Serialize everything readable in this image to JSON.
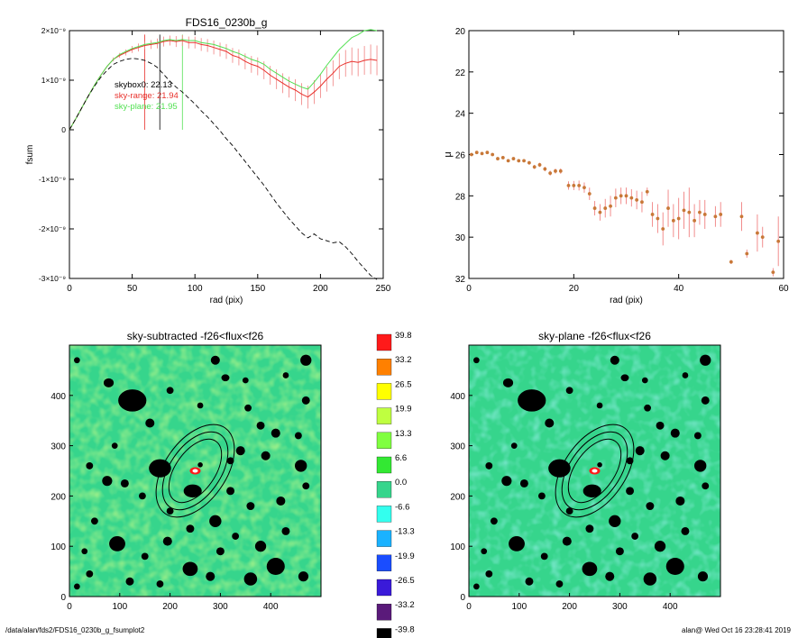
{
  "footer": {
    "path": "/data/alan/fds2/FDS16_0230b_g_fsumplot2",
    "user_date": "alan@  Wed Oct 16 23:28:41 2019"
  },
  "colors": {
    "red": "#e8312c",
    "green": "#52e052",
    "orange": "#c87838",
    "errorbar": "#f08080",
    "background_map": "#36d58c",
    "mask": "#000000"
  },
  "chart_data": [
    {
      "id": "fsum",
      "type": "line",
      "title": "FDS16_0230b_g",
      "xlabel": "rad (pix)",
      "ylabel": "fsum",
      "xlim": [
        0,
        250
      ],
      "ylim": [
        -3e-09,
        2e-09
      ],
      "xticks": [
        "0",
        "50",
        "100",
        "150",
        "200",
        "250"
      ],
      "yticks": [
        "-3×10⁻⁹",
        "-2×10⁻⁹",
        "-1×10⁻⁹",
        "0",
        "1×10⁻⁹",
        "2×10⁻⁹"
      ],
      "annotations": [
        {
          "text": "skybox0: 22.13",
          "color": "#000000"
        },
        {
          "text": "sky-range: 21.94",
          "color": "#e8312c"
        },
        {
          "text": "sky-plane: 21.95",
          "color": "#52e052"
        }
      ],
      "vertical_markers": [
        {
          "x": 60,
          "color": "#e8312c"
        },
        {
          "x": 72,
          "color": "#000000"
        },
        {
          "x": 90,
          "color": "#52e052"
        }
      ],
      "series": [
        {
          "style": "solid",
          "color": "#e8312c",
          "x": [
            0,
            5,
            10,
            15,
            20,
            25,
            30,
            35,
            40,
            45,
            50,
            55,
            60,
            65,
            70,
            75,
            80,
            85,
            90,
            95,
            100,
            105,
            110,
            115,
            120,
            125,
            130,
            135,
            140,
            145,
            150,
            155,
            160,
            165,
            170,
            175,
            180,
            185,
            190,
            195,
            200,
            205,
            210,
            215,
            220,
            225,
            230,
            235,
            240,
            245
          ],
          "y": [
            0,
            2.2e-10,
            4.5e-10,
            6.8e-10,
            9e-10,
            1.1e-09,
            1.28e-09,
            1.42e-09,
            1.5e-09,
            1.56e-09,
            1.62e-09,
            1.66e-09,
            1.7e-09,
            1.72e-09,
            1.74e-09,
            1.78e-09,
            1.8e-09,
            1.78e-09,
            1.8e-09,
            1.76e-09,
            1.76e-09,
            1.72e-09,
            1.7e-09,
            1.66e-09,
            1.62e-09,
            1.58e-09,
            1.5e-09,
            1.46e-09,
            1.38e-09,
            1.32e-09,
            1.28e-09,
            1.2e-09,
            1.1e-09,
            1.02e-09,
            9.4e-10,
            8.6e-10,
            8e-10,
            7.2e-10,
            6.6e-10,
            7.6e-10,
            8.8e-10,
            1.02e-09,
            1.14e-09,
            1.28e-09,
            1.34e-09,
            1.38e-09,
            1.36e-09,
            1.4e-09,
            1.42e-09,
            1.4e-09
          ],
          "err": [
            0,
            0,
            0,
            0,
            0,
            0,
            0,
            4e-11,
            5e-11,
            6e-11,
            7e-11,
            8e-11,
            8e-11,
            9e-11,
            1e-10,
            1e-10,
            1e-10,
            1.1e-10,
            1.1e-10,
            1.2e-10,
            1.2e-10,
            1.3e-10,
            1.3e-10,
            1.4e-10,
            1.4e-10,
            1.5e-10,
            1.5e-10,
            1.6e-10,
            1.6e-10,
            1.7e-10,
            1.8e-10,
            1.8e-10,
            1.9e-10,
            2e-10,
            2e-10,
            2.1e-10,
            2.2e-10,
            2.2e-10,
            2.3e-10,
            2.4e-10,
            2.4e-10,
            2.5e-10,
            2.6e-10,
            2.6e-10,
            2.7e-10,
            2.8e-10,
            2.8e-10,
            2.9e-10,
            3e-10,
            3e-10
          ]
        },
        {
          "style": "solid",
          "color": "#52e052",
          "x": [
            0,
            5,
            10,
            15,
            20,
            25,
            30,
            35,
            40,
            45,
            50,
            55,
            60,
            65,
            70,
            75,
            80,
            85,
            90,
            95,
            100,
            105,
            110,
            115,
            120,
            125,
            130,
            135,
            140,
            145,
            150,
            155,
            160,
            165,
            170,
            175,
            180,
            185,
            190,
            195,
            200,
            205,
            210,
            215,
            220,
            225,
            230,
            235,
            240,
            245
          ],
          "y": [
            0,
            2.2e-10,
            4.5e-10,
            6.8e-10,
            9e-10,
            1.1e-09,
            1.28e-09,
            1.42e-09,
            1.52e-09,
            1.58e-09,
            1.64e-09,
            1.68e-09,
            1.72e-09,
            1.74e-09,
            1.76e-09,
            1.8e-09,
            1.82e-09,
            1.8e-09,
            1.82e-09,
            1.8e-09,
            1.8e-09,
            1.76e-09,
            1.74e-09,
            1.72e-09,
            1.68e-09,
            1.64e-09,
            1.58e-09,
            1.54e-09,
            1.48e-09,
            1.42e-09,
            1.38e-09,
            1.32e-09,
            1.22e-09,
            1.14e-09,
            1.06e-09,
            9.8e-10,
            9.2e-10,
            8.6e-10,
            8.2e-10,
            9.6e-10,
            1.12e-09,
            1.3e-09,
            1.46e-09,
            1.62e-09,
            1.74e-09,
            1.86e-09,
            1.92e-09,
            2e-09,
            2.02e-09,
            2e-09
          ]
        },
        {
          "style": "dashed",
          "color": "#000000",
          "x": [
            0,
            5,
            10,
            15,
            20,
            25,
            30,
            35,
            40,
            45,
            50,
            55,
            60,
            65,
            70,
            75,
            80,
            85,
            90,
            95,
            100,
            105,
            110,
            115,
            120,
            125,
            130,
            135,
            140,
            145,
            150,
            155,
            160,
            165,
            170,
            175,
            180,
            185,
            190,
            195,
            200,
            205,
            210,
            215,
            220,
            225,
            230,
            235,
            240,
            245
          ],
          "y": [
            0,
            2.2e-10,
            4.5e-10,
            6.8e-10,
            8.8e-10,
            1.06e-09,
            1.2e-09,
            1.32e-09,
            1.38e-09,
            1.42e-09,
            1.44e-09,
            1.43e-09,
            1.4e-09,
            1.34e-09,
            1.26e-09,
            1.12e-09,
            9.8e-10,
            8.6e-10,
            7.6e-10,
            6.4e-10,
            5.2e-10,
            3.8e-10,
            2.6e-10,
            1.2e-10,
            -2e-11,
            -1.8e-10,
            -3.2e-10,
            -4.8e-10,
            -6.4e-10,
            -8e-10,
            -9.6e-10,
            -1.12e-09,
            -1.3e-09,
            -1.48e-09,
            -1.64e-09,
            -1.8e-09,
            -1.94e-09,
            -2.08e-09,
            -2.18e-09,
            -2.1e-09,
            -2.2e-09,
            -2.24e-09,
            -2.28e-09,
            -2.26e-09,
            -2.36e-09,
            -2.5e-09,
            -2.66e-09,
            -2.8e-09,
            -2.94e-09,
            -3.02e-09
          ]
        }
      ]
    },
    {
      "id": "mu",
      "type": "scatter",
      "xlabel": "rad (pix)",
      "ylabel": "μ",
      "xlim": [
        0,
        60
      ],
      "ylim": [
        32,
        20
      ],
      "xticks": [
        "0",
        "20",
        "40",
        "60"
      ],
      "yticks": [
        "20",
        "22",
        "24",
        "26",
        "28",
        "30",
        "32"
      ],
      "series": [
        {
          "color": "#c87838",
          "x": [
            0.5,
            1.5,
            2.5,
            3.5,
            4.5,
            5.5,
            6.5,
            7.5,
            8.5,
            9.5,
            10.5,
            11.5,
            12.5,
            13.5,
            14.5,
            15.5,
            16.5,
            17.5,
            19,
            20,
            21,
            22,
            23,
            24,
            25,
            26,
            27,
            28,
            29,
            30,
            31,
            32,
            33,
            34,
            35,
            36,
            37,
            38,
            39,
            40,
            41,
            42,
            43,
            44,
            45,
            47,
            48,
            50,
            52,
            53,
            55,
            56,
            58,
            59
          ],
          "y": [
            26.0,
            25.9,
            25.95,
            25.9,
            26.0,
            26.2,
            26.15,
            26.3,
            26.2,
            26.3,
            26.3,
            26.4,
            26.6,
            26.5,
            26.7,
            26.9,
            26.8,
            26.8,
            27.5,
            27.5,
            27.5,
            27.6,
            27.9,
            28.6,
            28.8,
            28.6,
            28.5,
            28.1,
            28.0,
            28.0,
            28.1,
            28.2,
            28.3,
            27.8,
            28.9,
            29.1,
            29.6,
            28.6,
            29.2,
            29.1,
            28.7,
            28.8,
            29.2,
            28.8,
            28.9,
            29.0,
            28.9,
            31.2,
            29.0,
            30.8,
            29.8,
            30.0,
            31.7,
            30.2
          ],
          "err": [
            0.05,
            0.05,
            0.05,
            0.05,
            0.05,
            0.06,
            0.06,
            0.07,
            0.07,
            0.08,
            0.08,
            0.09,
            0.1,
            0.1,
            0.11,
            0.12,
            0.12,
            0.13,
            0.2,
            0.22,
            0.24,
            0.25,
            0.3,
            0.35,
            0.4,
            0.45,
            0.5,
            0.45,
            0.4,
            0.4,
            0.42,
            0.45,
            0.5,
            0.2,
            0.6,
            0.7,
            0.8,
            0.9,
            0.8,
            1.0,
            0.9,
            1.2,
            0.8,
            0.6,
            0.7,
            0.5,
            0.6,
            0.1,
            0.7,
            0.2,
            0.9,
            0.5,
            0.2,
            1.2
          ]
        }
      ]
    },
    {
      "id": "map-left",
      "type": "heatmap",
      "title": "sky-subtracted -f26<flux<f26",
      "xlim": [
        0,
        500
      ],
      "ylim": [
        0,
        500
      ],
      "xticks": [
        "0",
        "100",
        "200",
        "300",
        "400"
      ],
      "yticks": [
        "0",
        "100",
        "200",
        "300",
        "400"
      ],
      "ellipse_center": [
        250,
        250
      ]
    },
    {
      "id": "colorbar",
      "type": "heatmap",
      "levels": [
        "39.8",
        "33.2",
        "26.5",
        "19.9",
        "13.3",
        "6.6",
        "0.0",
        "-6.6",
        "-13.3",
        "-19.9",
        "-26.5",
        "-33.2",
        "-39.8"
      ],
      "level_colors": [
        "#ff1a1a",
        "#ff8000",
        "#ffff00",
        "#bfff40",
        "#80ff40",
        "#33e833",
        "#36d58c",
        "#33ffee",
        "#1ab2ff",
        "#1a4dff",
        "#3a1ad9",
        "#5a1a7a",
        "#000000"
      ]
    },
    {
      "id": "map-right",
      "type": "heatmap",
      "title": "sky-plane -f26<flux<f26",
      "xlim": [
        0,
        500
      ],
      "ylim": [
        0,
        500
      ],
      "xticks": [
        "0",
        "100",
        "200",
        "300",
        "400"
      ],
      "yticks": [
        "0",
        "100",
        "200",
        "300",
        "400"
      ],
      "ellipse_center": [
        250,
        250
      ]
    }
  ]
}
